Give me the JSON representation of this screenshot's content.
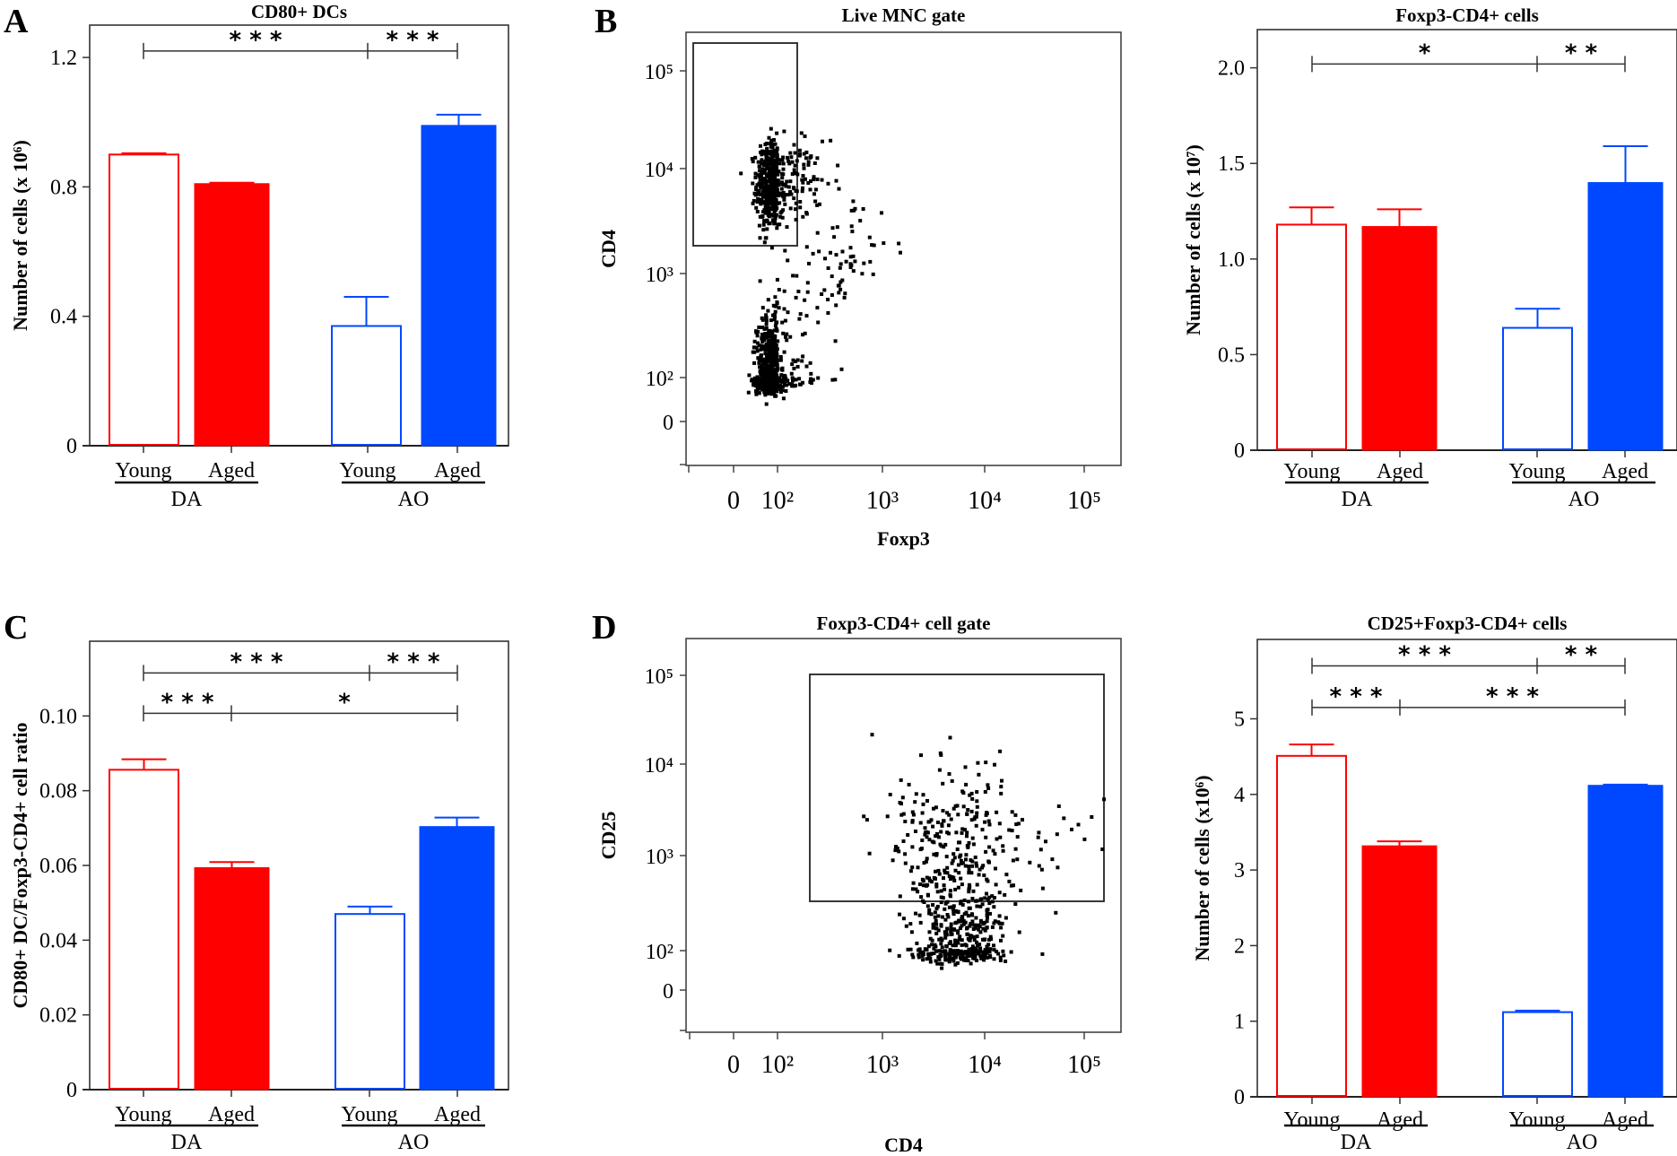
{
  "colors": {
    "red": "#FF0000",
    "blue": "#0048FF",
    "ink": "#222222"
  },
  "chart_data": [
    {
      "id": "A",
      "type": "bar",
      "panel_letter": "A",
      "title": "CD80+ DCs",
      "ylabel": "Number of cells (x 10⁶)",
      "ylim": [
        0,
        1.3
      ],
      "yticks": [
        0,
        0.4,
        0.8,
        1.2
      ],
      "ytick_labels": [
        "0",
        "0.4",
        "0.8",
        "1.2"
      ],
      "categories": [
        "Young",
        "Aged",
        "Young",
        "Aged"
      ],
      "groups": [
        {
          "label": "DA",
          "members": [
            0,
            1
          ]
        },
        {
          "label": "AO",
          "members": [
            2,
            3
          ]
        }
      ],
      "bars": [
        {
          "group": "DA",
          "age": "Young",
          "value": 0.9,
          "error": 0.004,
          "style": "outline",
          "color": "red"
        },
        {
          "group": "DA",
          "age": "Aged",
          "value": 0.81,
          "error": 0.003,
          "style": "filled",
          "color": "red"
        },
        {
          "group": "AO",
          "age": "Young",
          "value": 0.37,
          "error": 0.09,
          "style": "outline",
          "color": "blue"
        },
        {
          "group": "AO",
          "age": "Aged",
          "value": 0.99,
          "error": 0.033,
          "style": "filled",
          "color": "blue"
        }
      ],
      "significance": [
        {
          "from": 0,
          "mid": 2,
          "to": 3,
          "level": 1.22,
          "labels": [
            "* * *",
            "* * *"
          ]
        }
      ]
    },
    {
      "id": "B-bar",
      "type": "bar",
      "panel_letter": "",
      "title": "Foxp3-CD4+ cells",
      "ylabel": "Number of cells (x 10⁷)",
      "ylim": [
        0,
        2.2
      ],
      "yticks": [
        0,
        0.5,
        1.0,
        1.5,
        2.0
      ],
      "ytick_labels": [
        "0",
        "0.5",
        "1.0",
        "1.5",
        "2.0"
      ],
      "categories": [
        "Young",
        "Aged",
        "Young",
        "Aged"
      ],
      "groups": [
        {
          "label": "DA",
          "members": [
            0,
            1
          ]
        },
        {
          "label": "AO",
          "members": [
            2,
            3
          ]
        }
      ],
      "bars": [
        {
          "group": "DA",
          "age": "Young",
          "value": 1.18,
          "error": 0.09,
          "style": "outline",
          "color": "red"
        },
        {
          "group": "DA",
          "age": "Aged",
          "value": 1.17,
          "error": 0.09,
          "style": "filled",
          "color": "red"
        },
        {
          "group": "AO",
          "age": "Young",
          "value": 0.64,
          "error": 0.1,
          "style": "outline",
          "color": "blue"
        },
        {
          "group": "AO",
          "age": "Aged",
          "value": 1.4,
          "error": 0.19,
          "style": "filled",
          "color": "blue"
        }
      ],
      "significance": [
        {
          "from": 0,
          "mid": 2,
          "to": 3,
          "level": 2.02,
          "labels": [
            "*",
            "* *"
          ]
        }
      ]
    },
    {
      "id": "C",
      "type": "bar",
      "panel_letter": "C",
      "title": "",
      "ylabel": "CD80+ DC/Foxp3-CD4+ cell ratio",
      "ylim": [
        0,
        0.12
      ],
      "yticks": [
        0,
        0.02,
        0.04,
        0.06,
        0.08,
        0.1
      ],
      "ytick_labels": [
        "0",
        "0.02",
        "0.04",
        "0.06",
        "0.08",
        "0.10"
      ],
      "categories": [
        "Young",
        "Aged",
        "Young",
        "Aged"
      ],
      "groups": [
        {
          "label": "DA",
          "members": [
            0,
            1
          ]
        },
        {
          "label": "AO",
          "members": [
            2,
            3
          ]
        }
      ],
      "bars": [
        {
          "group": "DA",
          "age": "Young",
          "value": 0.0856,
          "error": 0.0028,
          "style": "outline",
          "color": "red"
        },
        {
          "group": "DA",
          "age": "Aged",
          "value": 0.0594,
          "error": 0.0015,
          "style": "filled",
          "color": "red"
        },
        {
          "group": "AO",
          "age": "Young",
          "value": 0.047,
          "error": 0.002,
          "style": "outline",
          "color": "blue"
        },
        {
          "group": "AO",
          "age": "Aged",
          "value": 0.0704,
          "error": 0.0024,
          "style": "filled",
          "color": "blue"
        }
      ],
      "significance": [
        {
          "from": 0,
          "mid": 2,
          "to": 3,
          "level": 0.1115,
          "labels": [
            "* * *",
            "* * *"
          ]
        },
        {
          "from": 0,
          "mid": 1,
          "to": 3,
          "level": 0.1007,
          "labels": [
            "* * *",
            "*"
          ]
        }
      ]
    },
    {
      "id": "D-bar",
      "type": "bar",
      "panel_letter": "",
      "title": "CD25+Foxp3-CD4+ cells",
      "ylabel": "Number of cells (x10⁶)",
      "ylim": [
        0,
        6.05
      ],
      "yticks": [
        0,
        1,
        2,
        3,
        4,
        5
      ],
      "ytick_labels": [
        "0",
        "1",
        "2",
        "3",
        "4",
        "5"
      ],
      "categories": [
        "Young",
        "Aged",
        "Young",
        "Aged"
      ],
      "groups": [
        {
          "label": "DA",
          "members": [
            0,
            1
          ]
        },
        {
          "label": "AO",
          "members": [
            2,
            3
          ]
        }
      ],
      "bars": [
        {
          "group": "DA",
          "age": "Young",
          "value": 4.51,
          "error": 0.15,
          "style": "outline",
          "color": "red"
        },
        {
          "group": "DA",
          "age": "Aged",
          "value": 3.32,
          "error": 0.06,
          "style": "filled",
          "color": "red"
        },
        {
          "group": "AO",
          "age": "Young",
          "value": 1.12,
          "error": 0.02,
          "style": "outline",
          "color": "blue"
        },
        {
          "group": "AO",
          "age": "Aged",
          "value": 4.12,
          "error": 0.01,
          "style": "filled",
          "color": "blue"
        }
      ],
      "significance": [
        {
          "from": 0,
          "mid": 2,
          "to": 3,
          "level": 5.7,
          "labels": [
            "* * *",
            "* *"
          ]
        },
        {
          "from": 0,
          "mid": 1,
          "to": 3,
          "level": 5.15,
          "labels": [
            "* * *",
            "* * *"
          ]
        }
      ]
    },
    {
      "id": "B-flow",
      "type": "scatter",
      "panel_letter": "B",
      "title": "Live MNC gate",
      "xlabel": "Foxp3",
      "ylabel": "CD4",
      "axis_scale": "biexponential (decades)",
      "xticks": [
        "0",
        "10²",
        "10³",
        "10⁴",
        "10⁵"
      ],
      "yticks": [
        "0",
        "10²",
        "10³",
        "10⁴",
        "10⁵"
      ],
      "gate": {
        "x_range": [
          "<0",
          "~1.5×10²"
        ],
        "y_range": [
          "~1.8×10³",
          "~2×10⁵"
        ]
      },
      "populations": [
        {
          "name": "CD4+ Foxp3-",
          "center_decades": [
            1.75,
            3.85
          ],
          "spread": [
            0.35,
            0.22
          ],
          "n": 520
        },
        {
          "name": "CD4- Foxp3-",
          "center_decades": [
            1.65,
            1.95
          ],
          "spread": [
            0.3,
            0.3
          ],
          "n": 780
        },
        {
          "name": "bridge",
          "center_decades": [
            2.0,
            2.8
          ],
          "spread": [
            0.3,
            0.35
          ],
          "n": 90
        }
      ]
    },
    {
      "id": "D-flow",
      "type": "scatter",
      "panel_letter": "D",
      "title": "Foxp3-CD4+ cell gate",
      "xlabel": "CD4",
      "ylabel": "CD25",
      "axis_scale": "biexponential (decades)",
      "xticks": [
        "0",
        "10²",
        "10³",
        "10⁴",
        "10⁵"
      ],
      "yticks": [
        "0",
        "10²",
        "10³",
        "10⁴",
        "10⁵"
      ],
      "gate": {
        "x_range": [
          "~2×10²",
          "~1.5×10⁵"
        ],
        "y_range": [
          "~3×10²",
          "10⁵"
        ]
      },
      "populations": [
        {
          "name": "CD4+ CD25 low",
          "center_decades": [
            3.75,
            2.1
          ],
          "spread": [
            0.22,
            0.35
          ],
          "n": 380
        },
        {
          "name": "CD4+ CD25 high",
          "center_decades": [
            3.7,
            3.1
          ],
          "spread": [
            0.32,
            0.45
          ],
          "n": 260
        },
        {
          "name": "CD4 high tail",
          "center_decades": [
            4.5,
            3.1
          ],
          "spread": [
            0.35,
            0.25
          ],
          "n": 35
        }
      ]
    }
  ]
}
